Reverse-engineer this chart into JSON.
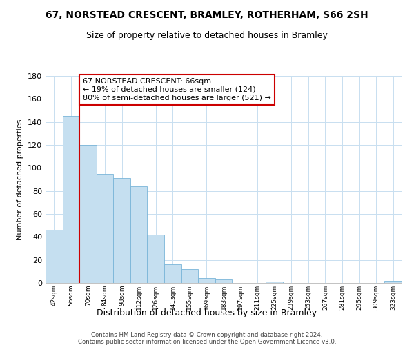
{
  "title": "67, NORSTEAD CRESCENT, BRAMLEY, ROTHERHAM, S66 2SH",
  "subtitle": "Size of property relative to detached houses in Bramley",
  "xlabel": "Distribution of detached houses by size in Bramley",
  "ylabel": "Number of detached properties",
  "bin_labels": [
    "42sqm",
    "56sqm",
    "70sqm",
    "84sqm",
    "98sqm",
    "112sqm",
    "126sqm",
    "141sqm",
    "155sqm",
    "169sqm",
    "183sqm",
    "197sqm",
    "211sqm",
    "225sqm",
    "239sqm",
    "253sqm",
    "267sqm",
    "281sqm",
    "295sqm",
    "309sqm",
    "323sqm"
  ],
  "bar_heights": [
    46,
    145,
    120,
    95,
    91,
    84,
    42,
    16,
    12,
    4,
    3,
    0,
    0,
    1,
    0,
    0,
    0,
    0,
    0,
    0,
    2
  ],
  "bar_color": "#c5dff0",
  "bar_edge_color": "#7ab5d8",
  "marker_color": "#CC0000",
  "annotation_text": "67 NORSTEAD CRESCENT: 66sqm\n← 19% of detached houses are smaller (124)\n80% of semi-detached houses are larger (521) →",
  "annotation_box_color": "#FFFFFF",
  "annotation_box_edge": "#CC0000",
  "ylim": [
    0,
    180
  ],
  "yticks": [
    0,
    20,
    40,
    60,
    80,
    100,
    120,
    140,
    160,
    180
  ],
  "footer1": "Contains HM Land Registry data © Crown copyright and database right 2024.",
  "footer2": "Contains public sector information licensed under the Open Government Licence v3.0.",
  "bg_color": "#FFFFFF",
  "grid_color": "#c8dff0"
}
